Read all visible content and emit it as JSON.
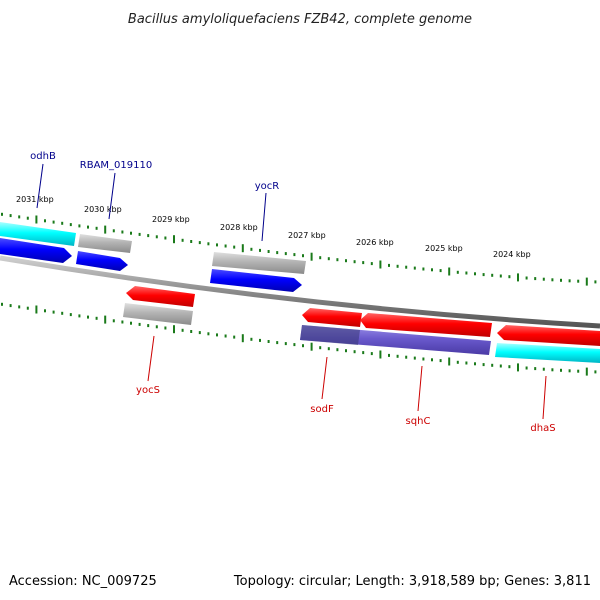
{
  "title": "Bacillus amyloliquefaciens FZB42, complete genome",
  "footer": {
    "accession": "Accession: NC_009725",
    "summary": "Topology: circular; Length: 3,918,589 bp; Genes: 3,811"
  },
  "colors": {
    "forward_label": "#00008b",
    "reverse_label": "#cc0000",
    "tick": "#1a7a1a",
    "backbone": "#888888",
    "blue_gene": "#0000ff",
    "red_gene": "#ff0000",
    "gray_gene": "#b3b3b3",
    "cyan_gene": "#00ffff",
    "purple_gene": "#6a5acd"
  },
  "tick_labels": [
    "2031 kbp",
    "2030 kbp",
    "2029 kbp",
    "2028 kbp",
    "2027 kbp",
    "2026 kbp",
    "2025 kbp",
    "2024 kbp"
  ],
  "gene_labels": {
    "forward": [
      "odhB",
      "RBAM_019110",
      "yocR"
    ],
    "reverse": [
      "yocS",
      "sodF",
      "sqhC",
      "dhaS"
    ]
  }
}
